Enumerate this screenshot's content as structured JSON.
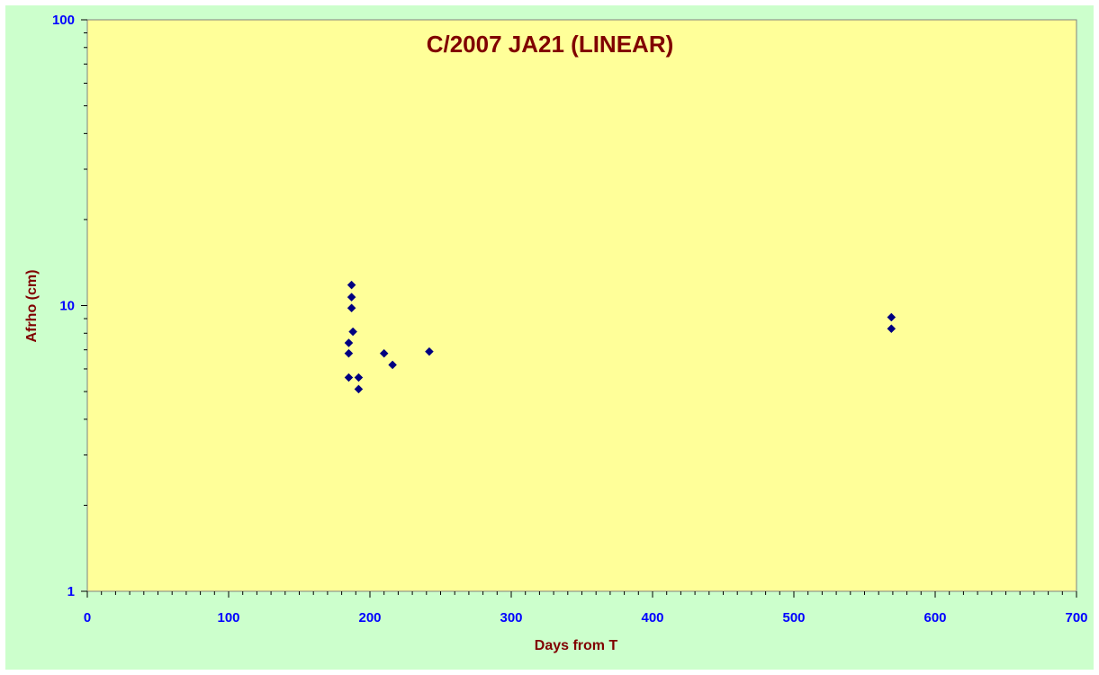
{
  "chart_data": {
    "type": "scatter",
    "title": "C/2007 JA21 (LINEAR)",
    "xlabel": "Days from T",
    "ylabel": "Afrho (cm)",
    "xlim": [
      0,
      700
    ],
    "ylim": [
      1,
      100
    ],
    "yscale": "log",
    "x_ticks": [
      0,
      100,
      200,
      300,
      400,
      500,
      600,
      700
    ],
    "y_ticks": [
      1,
      10,
      100
    ],
    "grid": false,
    "marker": "diamond",
    "colors": {
      "background": "#ccffcc",
      "plot_area": "#ffff99",
      "marker": "#000080",
      "title": "#800000",
      "tick_labels": "#0000ff"
    },
    "points": [
      {
        "x": 187,
        "y": 11.8
      },
      {
        "x": 187,
        "y": 10.7
      },
      {
        "x": 187,
        "y": 9.8
      },
      {
        "x": 188,
        "y": 8.1
      },
      {
        "x": 185,
        "y": 7.4
      },
      {
        "x": 185,
        "y": 6.8
      },
      {
        "x": 185,
        "y": 5.6
      },
      {
        "x": 192,
        "y": 5.6
      },
      {
        "x": 192,
        "y": 5.1
      },
      {
        "x": 210,
        "y": 6.8
      },
      {
        "x": 216,
        "y": 6.2
      },
      {
        "x": 242,
        "y": 6.9
      },
      {
        "x": 569,
        "y": 9.1
      },
      {
        "x": 569,
        "y": 8.3
      }
    ]
  }
}
